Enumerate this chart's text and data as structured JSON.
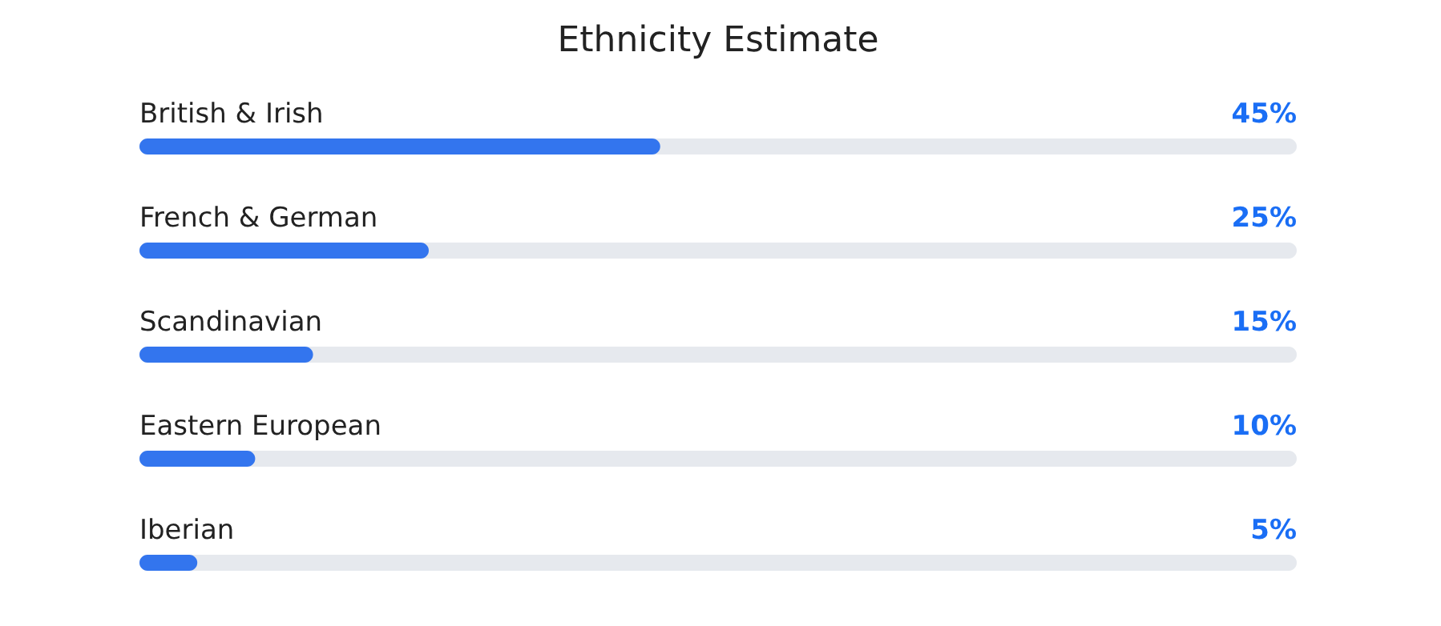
{
  "chart_data": {
    "type": "bar",
    "orientation": "horizontal",
    "title": "Ethnicity Estimate",
    "categories": [
      "British & Irish",
      "French & German",
      "Scandinavian",
      "Eastern European",
      "Iberian"
    ],
    "values": [
      45,
      25,
      15,
      10,
      5
    ],
    "value_labels": [
      "45%",
      "25%",
      "15%",
      "10%",
      "5%"
    ],
    "color": "#3375ee",
    "xlim": [
      0,
      100
    ]
  }
}
